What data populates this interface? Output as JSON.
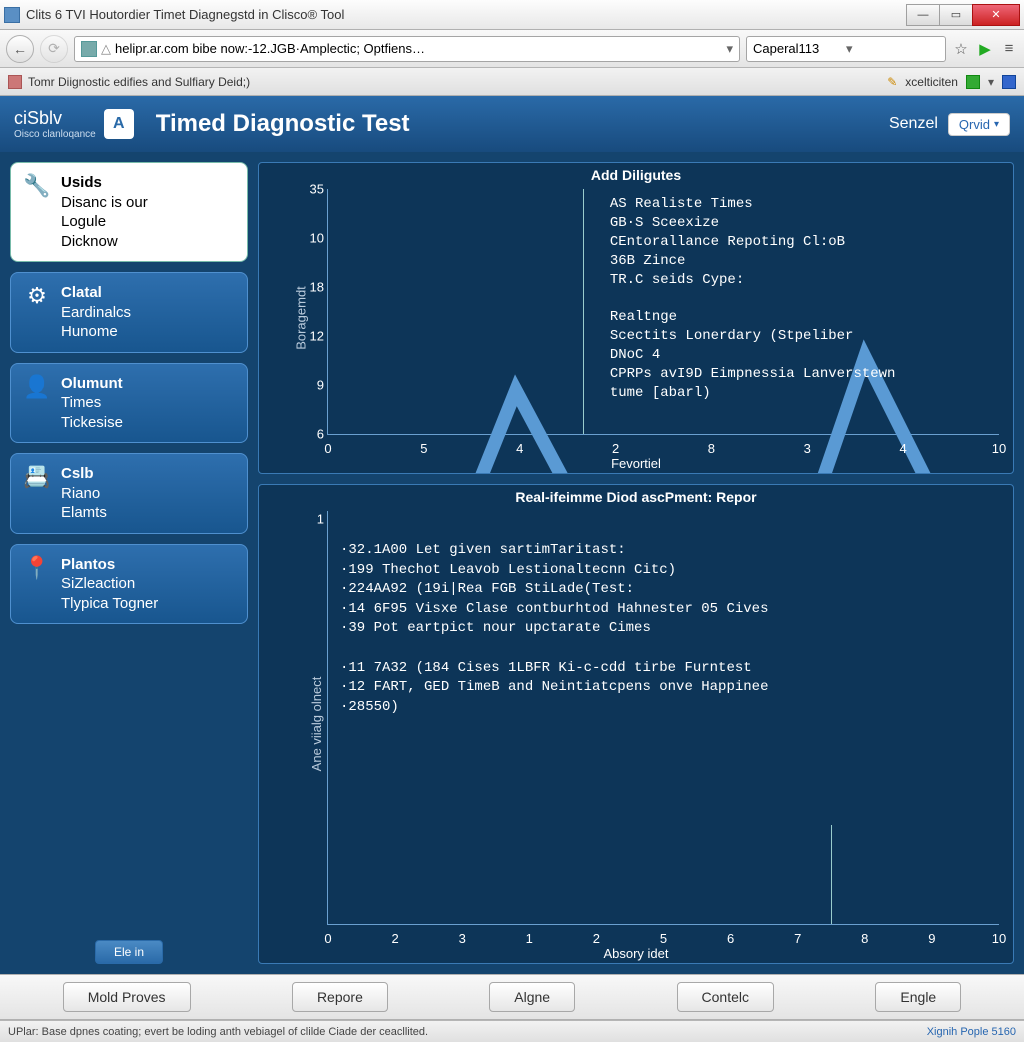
{
  "window": {
    "title": "Clits 6 TVI Houtordier Timet Diagnegstd in Clisco® Tool"
  },
  "browser": {
    "url": "helipr.ar.com bibe now:-12.JGB·Amplectic; Optfiens…",
    "search": "Caperal113",
    "tab_label": "Tomr Diignostic edifies and Sulfiary Deid;)",
    "tabright_label": "xcelticiten"
  },
  "header": {
    "logo": "ciSblv",
    "logo_sub": "Oisco clanloqance",
    "badge": "A",
    "title": "Timed Diagnostic Test",
    "right_label": "Senzel",
    "button": "Qrvid"
  },
  "sidebar": {
    "cards": [
      {
        "t1": "Usids",
        "t2": "Disanc is our",
        "t3": "Logule",
        "t4": "Dicknow"
      },
      {
        "t1": "Clatal",
        "t2": "Eardinalcs",
        "t3": "Hunome"
      },
      {
        "t1": "Olumunt",
        "t2": "Times",
        "t3": "Tickesise"
      },
      {
        "t1": "Cslb",
        "t2": "Riano",
        "t3": "Elamts"
      },
      {
        "t1": "Plantos",
        "t2": "SiZleaction",
        "t3": "Tlypica Togner"
      }
    ],
    "button": "Ele in"
  },
  "chart_upper": {
    "title": "Add Diligutes",
    "ylabel": "Boragemdt",
    "xlabel": "Fevortiel",
    "yticks": [
      "35",
      "10",
      "18",
      "12",
      "9",
      "6"
    ],
    "xticks": [
      "0",
      "5",
      "4",
      "2",
      "8",
      "3",
      "4",
      "10"
    ],
    "overlay": "AS Realiste Times\nGB·S Sceexize\nCEntorallance Repoting Cl:oB\n36B Zince\nTR.C seids Cype:\n\nRealtnge\nScectits Lonerdary (Stpeliber\nDNoC 4\nCPRPs avI9D Eimpnessia Lanverstewn\ntume [abarl)",
    "curve": {
      "stroke": "#5a9ad4",
      "points": [
        [
          0,
          35
        ],
        [
          8,
          30
        ],
        [
          18,
          45
        ],
        [
          28,
          70
        ],
        [
          36,
          55
        ],
        [
          46,
          30
        ],
        [
          58,
          50
        ],
        [
          68,
          40
        ],
        [
          80,
          75
        ],
        [
          90,
          55
        ],
        [
          100,
          38
        ]
      ]
    },
    "vline_pct": 38
  },
  "chart_lower": {
    "title": "Real-ifeimme Diod ascPment: Repor",
    "ylabel": "Ane viialg olnect",
    "xlabel": "Absory idet",
    "ytick": "1",
    "xticks": [
      "0",
      "2",
      "3",
      "1",
      "2",
      "5",
      "6",
      "7",
      "8",
      "9",
      "10"
    ],
    "log": "·32.1A00 Let given sartimTaritast:\n·199 Thechot Leavob Lestionaltecnn Citc)\n·224AA92 (19i|Rea FGB StiLade(Test:\n·14 6F95 Visxe Clase contburhtod Hahnester 05 Cives\n·39 Pot eartpict nour upctarate Cimes\n\n·11 7A32 (184 Cises 1LBFR Ki-c-cdd tirbe Furntest\n·12 FART, GED TimeB and Neintiatcpens onve Happinee\n·28550)",
    "vline_pct": 75
  },
  "buttons": [
    "Mold Proves",
    "Repore",
    "Algne",
    "Contelc",
    "Engle"
  ],
  "statusbar": {
    "left": "UPlar: Base dpnes coating; evert be loding anth vebiagel of clilde Ciade der ceacllited.",
    "right": "Xignih Pople 5160"
  },
  "colors": {
    "panel_bg": "#0d3558",
    "app_bg": "#14446e",
    "header_grad_a": "#2a6aa8",
    "header_grad_b": "#184b7e",
    "curve": "#5a9ad4"
  }
}
